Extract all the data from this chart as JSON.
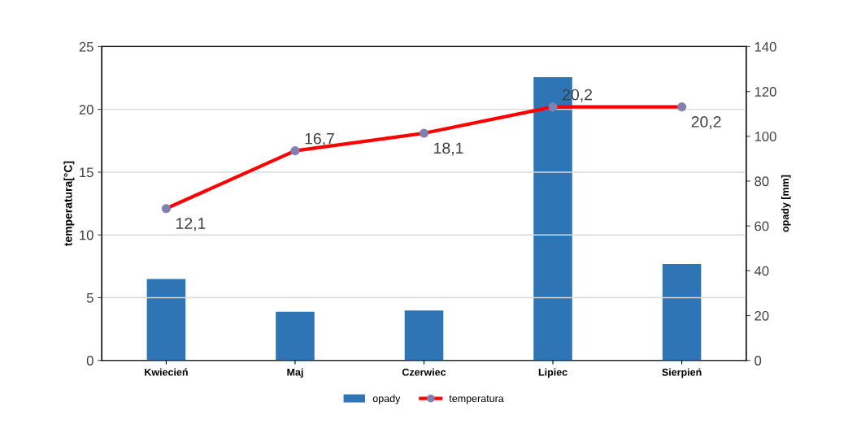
{
  "chart_data": {
    "type": "bar",
    "categories": [
      "Kwiecień",
      "Maj",
      "Czerwiec",
      "Lipiec",
      "Sierpień"
    ],
    "ylabel": "temperatura[°C]",
    "y2label": "opady [mm]",
    "ylim": [
      0,
      25
    ],
    "yticks": [
      0,
      5,
      10,
      15,
      20,
      25
    ],
    "y2lim": [
      0,
      140
    ],
    "y2ticks": [
      0,
      20,
      40,
      60,
      80,
      100,
      120,
      140
    ],
    "series": [
      {
        "name": "opady",
        "axis": "y2",
        "color": "#2e75b6",
        "values": [
          36.3,
          21.7,
          22.3,
          126.4,
          43.0
        ]
      },
      {
        "name": "temperatura",
        "type": "line",
        "axis": "y",
        "color": "#ff0000",
        "marker": "circle",
        "values": [
          12.1,
          16.7,
          18.1,
          20.2,
          20.2
        ],
        "value_labels": [
          "12,1",
          "16,7",
          "18,1",
          "20,2",
          "20,2"
        ]
      }
    ],
    "grid": "y",
    "legend": "bottom"
  }
}
